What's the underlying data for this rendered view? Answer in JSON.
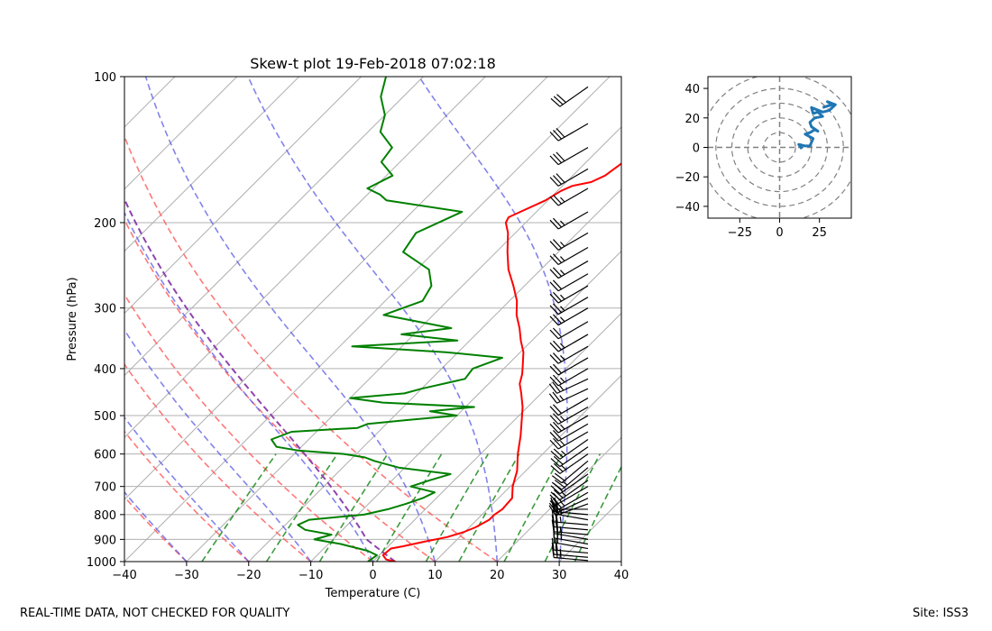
{
  "chart_data": [
    {
      "type": "skew-t",
      "title": "Skew-t plot 19-Feb-2018 07:02:18",
      "xlabel": "Temperature (C)",
      "ylabel": "Pressure (hPa)",
      "xlim": [
        -40,
        40
      ],
      "ylim": [
        1000,
        100
      ],
      "x_ticks": [
        -40,
        -30,
        -20,
        -10,
        0,
        10,
        20,
        30,
        40
      ],
      "y_ticks": [
        100,
        200,
        300,
        400,
        500,
        600,
        700,
        800,
        900,
        1000
      ],
      "series": [
        {
          "name": "temperature",
          "color": "#ff0000",
          "points": [
            [
              1000,
              3.6
            ],
            [
              990,
              1.8
            ],
            [
              970,
              0.6
            ],
            [
              940,
              0.8
            ],
            [
              930,
              2.4
            ],
            [
              910,
              5.0
            ],
            [
              890,
              8.0
            ],
            [
              870,
              9.8
            ],
            [
              850,
              11.0
            ],
            [
              820,
              12.0
            ],
            [
              800,
              12.0
            ],
            [
              780,
              12.4
            ],
            [
              740,
              12.2
            ],
            [
              700,
              10.4
            ],
            [
              650,
              8.6
            ],
            [
              600,
              6.0
            ],
            [
              550,
              3.5
            ],
            [
              500,
              0.5
            ],
            [
              480,
              -0.8
            ],
            [
              450,
              -3.2
            ],
            [
              430,
              -5.0
            ],
            [
              410,
              -6.2
            ],
            [
              390,
              -7.8
            ],
            [
              370,
              -9.5
            ],
            [
              350,
              -11.8
            ],
            [
              330,
              -14.0
            ],
            [
              310,
              -16.6
            ],
            [
              290,
              -18.8
            ],
            [
              270,
              -21.8
            ],
            [
              250,
              -25.2
            ],
            [
              230,
              -28.2
            ],
            [
              210,
              -31.2
            ],
            [
              200,
              -33.2
            ],
            [
              195,
              -33.6
            ],
            [
              190,
              -32.6
            ],
            [
              180,
              -30.4
            ],
            [
              172,
              -29.4
            ],
            [
              168,
              -28.4
            ],
            [
              165,
              -26.0
            ],
            [
              160,
              -24.8
            ],
            [
              150,
              -24.0
            ],
            [
              140,
              -23.6
            ],
            [
              130,
              -24.6
            ],
            [
              125,
              -22.8
            ],
            [
              118,
              -22.8
            ],
            [
              112,
              -22.8
            ],
            [
              105,
              -23.2
            ],
            [
              100,
              -22.6
            ]
          ]
        },
        {
          "name": "dewpoint",
          "color": "#008000",
          "points": [
            [
              1000,
              -0.8
            ],
            [
              970,
              -0.4
            ],
            [
              950,
              -2.6
            ],
            [
              920,
              -8.0
            ],
            [
              900,
              -13.0
            ],
            [
              880,
              -11.0
            ],
            [
              860,
              -16.0
            ],
            [
              840,
              -18.0
            ],
            [
              820,
              -17.0
            ],
            [
              800,
              -9.0
            ],
            [
              780,
              -6.0
            ],
            [
              760,
              -4.0
            ],
            [
              740,
              -2.2
            ],
            [
              720,
              -1.2
            ],
            [
              700,
              -6.0
            ],
            [
              680,
              -4.0
            ],
            [
              660,
              -1.6
            ],
            [
              640,
              -11.0
            ],
            [
              620,
              -16.0
            ],
            [
              610,
              -18.0
            ],
            [
              600,
              -22.0
            ],
            [
              590,
              -30.0
            ],
            [
              580,
              -34.0
            ],
            [
              560,
              -36.0
            ],
            [
              540,
              -34.0
            ],
            [
              530,
              -24.0
            ],
            [
              520,
              -23.0
            ],
            [
              510,
              -17.0
            ],
            [
              500,
              -10.0
            ],
            [
              490,
              -15.0
            ],
            [
              480,
              -8.6
            ],
            [
              470,
              -24.0
            ],
            [
              460,
              -30.0
            ],
            [
              450,
              -22.0
            ],
            [
              440,
              -20.0
            ],
            [
              420,
              -14.6
            ],
            [
              400,
              -15.0
            ],
            [
              380,
              -12.0
            ],
            [
              370,
              -22.0
            ],
            [
              360,
              -38.0
            ],
            [
              350,
              -22.0
            ],
            [
              340,
              -32.0
            ],
            [
              330,
              -25.0
            ],
            [
              310,
              -38.0
            ],
            [
              290,
              -34.0
            ],
            [
              270,
              -35.0
            ],
            [
              250,
              -38.0
            ],
            [
              230,
              -45.0
            ],
            [
              210,
              -46.0
            ],
            [
              190,
              -42.0
            ],
            [
              180,
              -56.0
            ],
            [
              175,
              -58.0
            ],
            [
              170,
              -61.0
            ],
            [
              160,
              -59.0
            ],
            [
              150,
              -63.0
            ],
            [
              140,
              -63.6
            ],
            [
              130,
              -68.0
            ],
            [
              120,
              -70.0
            ],
            [
              110,
              -73.6
            ],
            [
              100,
              -76.0
            ]
          ]
        }
      ],
      "reference_lines": {
        "isotherms": [
          -120,
          -110,
          -100,
          -90,
          -80,
          -70,
          -60,
          -50,
          -40,
          -30,
          -20,
          -10,
          0,
          10,
          20,
          30,
          40
        ],
        "dry_adiabats_C": [
          -30,
          -20,
          -10,
          0,
          10,
          20
        ],
        "moist_adiabats_C": [
          -30,
          -20,
          -10,
          0,
          10,
          20,
          30
        ],
        "mixing_ratio_lines_gkg": [
          0.4,
          1,
          2,
          4,
          7,
          10,
          16,
          24,
          32
        ],
        "parcel_profile_color": "#8e44ad"
      },
      "wind_barbs": [
        {
          "p": 995,
          "dir": 275,
          "spd": 25
        },
        {
          "p": 980,
          "dir": 275,
          "spd": 25
        },
        {
          "p": 960,
          "dir": 275,
          "spd": 20
        },
        {
          "p": 940,
          "dir": 280,
          "spd": 20
        },
        {
          "p": 920,
          "dir": 280,
          "spd": 25
        },
        {
          "p": 900,
          "dir": 280,
          "spd": 25
        },
        {
          "p": 880,
          "dir": 275,
          "spd": 25
        },
        {
          "p": 860,
          "dir": 275,
          "spd": 20
        },
        {
          "p": 840,
          "dir": 275,
          "spd": 25
        },
        {
          "p": 820,
          "dir": 280,
          "spd": 25
        },
        {
          "p": 800,
          "dir": 275,
          "spd": 20
        },
        {
          "p": 780,
          "dir": 270,
          "spd": 20
        },
        {
          "p": 760,
          "dir": 250,
          "spd": 20
        },
        {
          "p": 740,
          "dir": 245,
          "spd": 20
        },
        {
          "p": 720,
          "dir": 240,
          "spd": 25
        },
        {
          "p": 700,
          "dir": 240,
          "spd": 20
        },
        {
          "p": 680,
          "dir": 235,
          "spd": 25
        },
        {
          "p": 660,
          "dir": 235,
          "spd": 20
        },
        {
          "p": 640,
          "dir": 230,
          "spd": 25
        },
        {
          "p": 620,
          "dir": 230,
          "spd": 20
        },
        {
          "p": 600,
          "dir": 235,
          "spd": 25
        },
        {
          "p": 580,
          "dir": 235,
          "spd": 20
        },
        {
          "p": 560,
          "dir": 235,
          "spd": 25
        },
        {
          "p": 540,
          "dir": 240,
          "spd": 25
        },
        {
          "p": 520,
          "dir": 240,
          "spd": 20
        },
        {
          "p": 500,
          "dir": 240,
          "spd": 25
        },
        {
          "p": 480,
          "dir": 240,
          "spd": 25
        },
        {
          "p": 460,
          "dir": 240,
          "spd": 20
        },
        {
          "p": 440,
          "dir": 245,
          "spd": 25
        },
        {
          "p": 420,
          "dir": 245,
          "spd": 25
        },
        {
          "p": 400,
          "dir": 240,
          "spd": 25
        },
        {
          "p": 380,
          "dir": 240,
          "spd": 20
        },
        {
          "p": 360,
          "dir": 240,
          "spd": 25
        },
        {
          "p": 340,
          "dir": 240,
          "spd": 25
        },
        {
          "p": 320,
          "dir": 240,
          "spd": 20
        },
        {
          "p": 300,
          "dir": 240,
          "spd": 25
        },
        {
          "p": 285,
          "dir": 240,
          "spd": 25
        },
        {
          "p": 270,
          "dir": 240,
          "spd": 25
        },
        {
          "p": 255,
          "dir": 240,
          "spd": 20
        },
        {
          "p": 240,
          "dir": 240,
          "spd": 25
        },
        {
          "p": 225,
          "dir": 240,
          "spd": 25
        },
        {
          "p": 210,
          "dir": 240,
          "spd": 25
        },
        {
          "p": 190,
          "dir": 240,
          "spd": 25
        },
        {
          "p": 170,
          "dir": 240,
          "spd": 25
        },
        {
          "p": 155,
          "dir": 240,
          "spd": 30
        },
        {
          "p": 140,
          "dir": 240,
          "spd": 30
        },
        {
          "p": 125,
          "dir": 240,
          "spd": 30
        },
        {
          "p": 105,
          "dir": 235,
          "spd": 30
        }
      ]
    },
    {
      "type": "hodograph",
      "xlim": [
        -45,
        45
      ],
      "ylim": [
        -48,
        48
      ],
      "x_ticks": [
        -25,
        0,
        25
      ],
      "y_ticks": [
        -40,
        -20,
        0,
        20,
        40
      ],
      "rings": [
        10,
        20,
        30,
        40,
        50
      ],
      "color": "#1f77b4",
      "x": [
        14,
        12,
        16,
        19,
        21,
        16,
        19,
        22,
        24,
        20,
        19,
        22,
        27,
        24,
        21,
        20,
        27,
        31,
        35,
        30,
        33,
        27
      ],
      "y": [
        -1,
        2,
        1,
        1,
        6,
        9,
        10,
        12,
        11,
        14,
        17,
        20,
        21,
        24,
        23,
        27,
        24,
        25,
        29,
        31,
        29,
        27
      ]
    }
  ],
  "footer": {
    "left": "REAL-TIME DATA, NOT CHECKED FOR QUALITY",
    "right": "Site: ISS3"
  }
}
